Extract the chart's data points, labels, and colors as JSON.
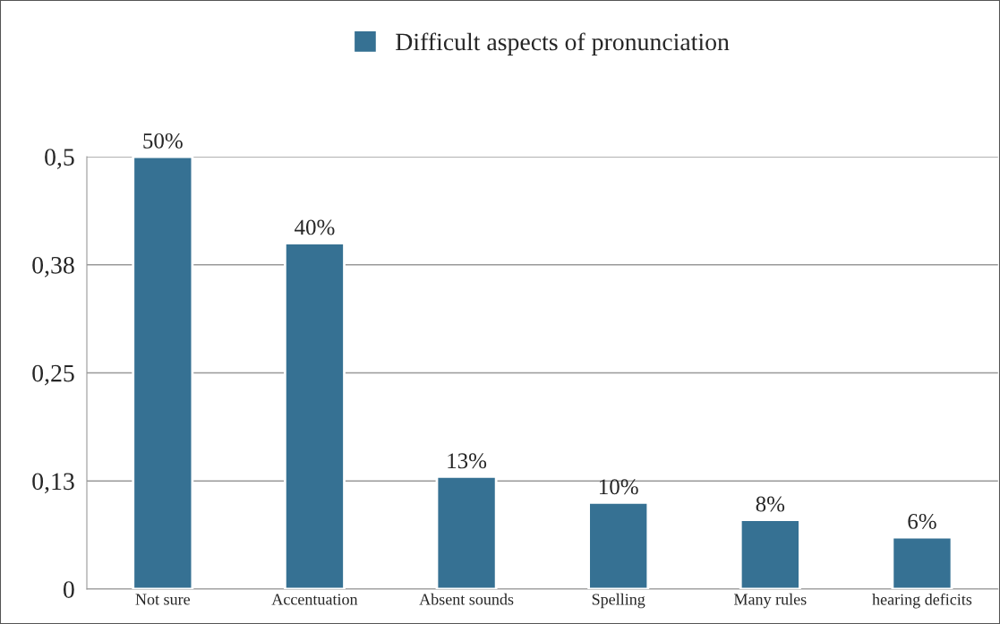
{
  "chart_data": {
    "type": "bar",
    "categories": [
      "Not sure",
      "Accentuation",
      "Absent sounds",
      "Spelling",
      "Many rules",
      "hearing deficits"
    ],
    "series": [
      {
        "name": "Difficult aspects of pronunciation",
        "color": "#367193",
        "values": [
          0.5,
          0.4,
          0.13,
          0.1,
          0.08,
          0.06
        ],
        "value_labels": [
          "50%",
          "40%",
          "13%",
          "10%",
          "8%",
          "6%"
        ]
      }
    ],
    "ylim": [
      0,
      0.5
    ],
    "yticks": [
      0,
      {
        "value": 0.125,
        "label": "0,13"
      },
      {
        "value": 0.25,
        "label": "0,25"
      },
      {
        "value": 0.375,
        "label": "0,38"
      },
      {
        "value": 0.5,
        "label": "0,5"
      }
    ],
    "grid": "y",
    "legend": "top"
  }
}
